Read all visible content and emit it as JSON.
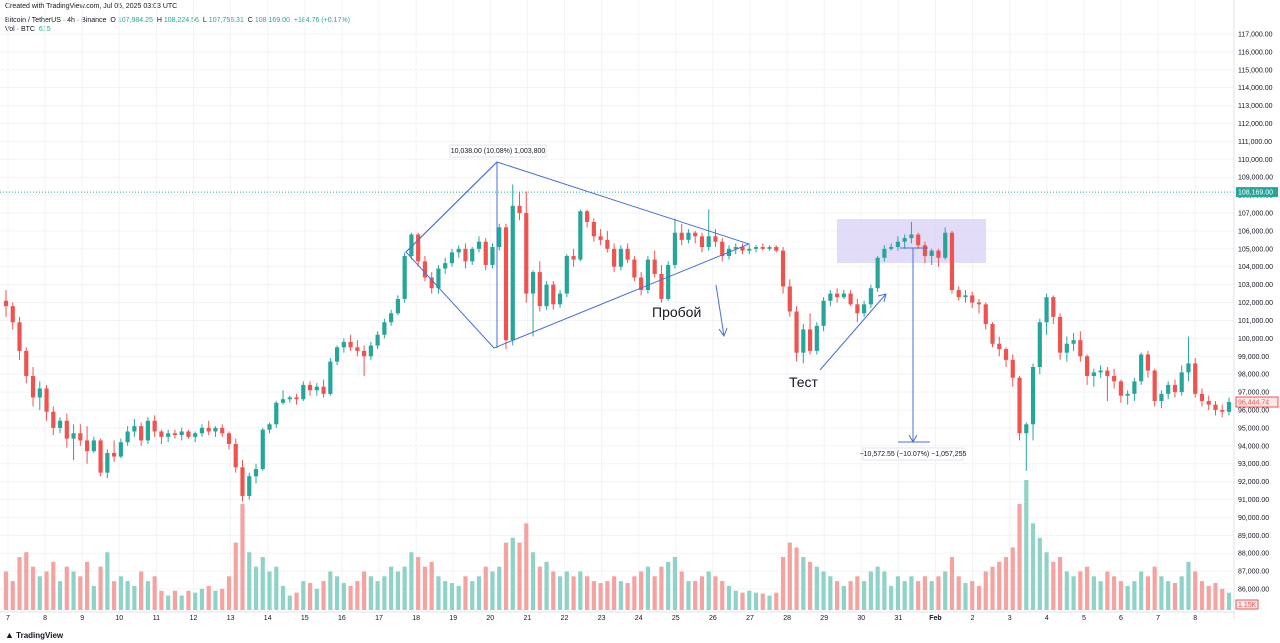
{
  "header": {
    "created": "Created with TradingView.com, Jul 05, 2025 03:03 UTC",
    "symbol": "Bitcoin / TetherUS · 4h · Binance",
    "o_label": "O",
    "o": "107,984.25",
    "h_label": "H",
    "h": "108,224.56",
    "l_label": "L",
    "l": "107,756.31",
    "c_label": "C",
    "c": "108,169.00",
    "change": "+184.76 (+0.17%)",
    "vol_label": "Vol · BTC",
    "vol": "615"
  },
  "brand": "TradingView",
  "colors": {
    "up": "#26a69a",
    "down": "#ef5350",
    "up_vol": "#8fd3c8",
    "down_vol": "#f4a3a1",
    "drawing": "#4a6fd8",
    "zone": "#d9d0f5",
    "price_tag": "#26a69a",
    "last_tag": "#ef5350"
  },
  "chart_data": {
    "type": "candlestick",
    "ylim": [
      85500,
      117500
    ],
    "y_ticks": [
      "117,000.00",
      "116,000.00",
      "115,000.00",
      "114,000.00",
      "113,000.00",
      "112,000.00",
      "111,000.00",
      "110,000.00",
      "109,000.00",
      "108,000.00",
      "107,000.00",
      "106,000.00",
      "105,000.00",
      "104,000.00",
      "103,000.00",
      "102,000.00",
      "101,000.00",
      "100,000.00",
      "99,000.00",
      "98,000.00",
      "97,000.00",
      "96,000.00",
      "95,000.00",
      "94,000.00",
      "93,000.00",
      "92,000.00",
      "91,000.00",
      "90,000.00",
      "89,000.00",
      "88,000.00",
      "87,000.00",
      "86,000.00"
    ],
    "x_ticks": [
      "7",
      "8",
      "9",
      "10",
      "11",
      "12",
      "13",
      "14",
      "15",
      "16",
      "17",
      "18",
      "19",
      "20",
      "21",
      "22",
      "23",
      "24",
      "25",
      "26",
      "27",
      "28",
      "29",
      "30",
      "31",
      "Feb",
      "2",
      "3",
      "4",
      "5",
      "6",
      "7",
      "8"
    ],
    "current_price": "108,169.00",
    "current_price_value": 108169,
    "last_candle_price": "96,444.74",
    "last_candle_value": 96444.74,
    "last_volume": "1.15K",
    "measure_up": "10,038.00 (10.08%) 1,003,800",
    "measure_down": "−10,572.55 (−10.07%) −1,057,255",
    "annotations": [
      "Пробой",
      "Тест"
    ],
    "candles": [
      [
        102100,
        102700,
        101200,
        101800,
        40
      ],
      [
        101800,
        102000,
        100500,
        100900,
        30
      ],
      [
        100900,
        101200,
        98800,
        99300,
        55
      ],
      [
        99300,
        99500,
        97500,
        97900,
        60
      ],
      [
        97900,
        98400,
        96200,
        96700,
        45
      ],
      [
        96700,
        97600,
        96000,
        97200,
        35
      ],
      [
        97200,
        97400,
        95400,
        95900,
        40
      ],
      [
        95900,
        96200,
        94600,
        95000,
        50
      ],
      [
        95000,
        95600,
        94700,
        95400,
        30
      ],
      [
        95400,
        95800,
        93900,
        94400,
        45
      ],
      [
        94400,
        95200,
        93200,
        94700,
        40
      ],
      [
        94700,
        95200,
        94000,
        94300,
        35
      ],
      [
        94300,
        95100,
        93000,
        93700,
        50
      ],
      [
        93700,
        94500,
        93600,
        94300,
        25
      ],
      [
        94300,
        94400,
        92300,
        92500,
        45
      ],
      [
        92500,
        93800,
        92200,
        93600,
        60
      ],
      [
        93600,
        94300,
        93100,
        93400,
        30
      ],
      [
        93400,
        94400,
        93300,
        94200,
        35
      ],
      [
        94200,
        95100,
        94000,
        94800,
        30
      ],
      [
        94800,
        95500,
        94500,
        95100,
        25
      ],
      [
        95100,
        95300,
        94000,
        94300,
        40
      ],
      [
        94300,
        95600,
        94100,
        95400,
        30
      ],
      [
        95400,
        95700,
        94500,
        94800,
        35
      ],
      [
        94800,
        94900,
        94100,
        94500,
        20
      ],
      [
        94500,
        94900,
        94200,
        94700,
        15
      ],
      [
        94700,
        94900,
        94400,
        94600,
        20
      ],
      [
        94600,
        95000,
        94300,
        94800,
        15
      ],
      [
        94800,
        94900,
        94400,
        94500,
        20
      ],
      [
        94500,
        94800,
        94200,
        94700,
        18
      ],
      [
        94700,
        95200,
        94500,
        95000,
        22
      ],
      [
        95000,
        95400,
        94600,
        94800,
        25
      ],
      [
        94800,
        95100,
        94500,
        95000,
        20
      ],
      [
        95000,
        95200,
        94500,
        94700,
        22
      ],
      [
        94700,
        94800,
        93800,
        94100,
        35
      ],
      [
        94100,
        94400,
        92500,
        92800,
        70
      ],
      [
        92800,
        93200,
        90900,
        91200,
        110
      ],
      [
        91200,
        92500,
        91000,
        92300,
        60
      ],
      [
        92300,
        93000,
        91900,
        92700,
        45
      ],
      [
        92700,
        95000,
        92600,
        94900,
        55
      ],
      [
        94900,
        95300,
        94700,
        95200,
        40
      ],
      [
        95200,
        96500,
        95000,
        96400,
        45
      ],
      [
        96400,
        97100,
        96300,
        96600,
        25
      ],
      [
        96600,
        96800,
        96400,
        96700,
        15
      ],
      [
        96700,
        96900,
        96300,
        96600,
        18
      ],
      [
        96600,
        97600,
        96500,
        97400,
        30
      ],
      [
        97400,
        97600,
        96800,
        97100,
        28
      ],
      [
        97100,
        97500,
        96800,
        97300,
        22
      ],
      [
        97300,
        97700,
        96700,
        96900,
        30
      ],
      [
        96900,
        98900,
        96800,
        98700,
        40
      ],
      [
        98700,
        99600,
        98500,
        99500,
        35
      ],
      [
        99500,
        100000,
        99200,
        99800,
        28
      ],
      [
        99800,
        100200,
        99300,
        99500,
        25
      ],
      [
        99500,
        99900,
        99000,
        99300,
        30
      ],
      [
        99300,
        99600,
        97900,
        99000,
        40
      ],
      [
        99000,
        99800,
        98800,
        99600,
        35
      ],
      [
        99600,
        100400,
        99400,
        100200,
        30
      ],
      [
        100200,
        101100,
        100000,
        100900,
        35
      ],
      [
        100900,
        101600,
        100700,
        101400,
        45
      ],
      [
        101400,
        102400,
        101300,
        102200,
        40
      ],
      [
        102200,
        104800,
        102000,
        104600,
        45
      ],
      [
        104600,
        105900,
        104400,
        105800,
        60
      ],
      [
        105800,
        105900,
        104000,
        104300,
        55
      ],
      [
        104300,
        104600,
        103200,
        103400,
        45
      ],
      [
        103400,
        103700,
        102500,
        102800,
        50
      ],
      [
        102800,
        104100,
        102500,
        103900,
        35
      ],
      [
        103900,
        104500,
        103600,
        104200,
        30
      ],
      [
        104200,
        105000,
        104000,
        104800,
        28
      ],
      [
        104800,
        105200,
        104500,
        105000,
        25
      ],
      [
        105000,
        105300,
        103900,
        104300,
        35
      ],
      [
        104300,
        105100,
        104100,
        105000,
        30
      ],
      [
        105000,
        105700,
        104800,
        105400,
        35
      ],
      [
        105400,
        105600,
        103800,
        104100,
        45
      ],
      [
        104100,
        105300,
        103900,
        105100,
        40
      ],
      [
        105100,
        106400,
        104900,
        106200,
        45
      ],
      [
        106200,
        106400,
        99400,
        99900,
        70
      ],
      [
        99900,
        108600,
        99600,
        107400,
        75
      ],
      [
        107400,
        108200,
        106600,
        107000,
        70
      ],
      [
        107000,
        108200,
        102000,
        102500,
        90
      ],
      [
        102500,
        103800,
        100100,
        103700,
        60
      ],
      [
        103700,
        104300,
        101500,
        101800,
        45
      ],
      [
        101800,
        103200,
        101600,
        103000,
        50
      ],
      [
        103000,
        103200,
        101600,
        101900,
        40
      ],
      [
        101900,
        102700,
        101700,
        102500,
        35
      ],
      [
        102500,
        104700,
        102300,
        104600,
        40
      ],
      [
        104600,
        105000,
        104000,
        104400,
        35
      ],
      [
        104400,
        107200,
        104300,
        107100,
        40
      ],
      [
        107100,
        107200,
        106200,
        106500,
        35
      ],
      [
        106500,
        106700,
        105400,
        105700,
        30
      ],
      [
        105700,
        106100,
        105200,
        105500,
        28
      ],
      [
        105500,
        106000,
        104800,
        105000,
        30
      ],
      [
        105000,
        105300,
        103700,
        104000,
        35
      ],
      [
        104000,
        105200,
        103800,
        105000,
        30
      ],
      [
        105000,
        105300,
        104200,
        104400,
        28
      ],
      [
        104400,
        104600,
        103200,
        103400,
        35
      ],
      [
        103400,
        103700,
        102400,
        102700,
        40
      ],
      [
        102700,
        104600,
        102500,
        104400,
        45
      ],
      [
        104400,
        104900,
        103400,
        103600,
        35
      ],
      [
        103600,
        104100,
        102000,
        102200,
        45
      ],
      [
        102200,
        104300,
        102100,
        104100,
        50
      ],
      [
        104100,
        106700,
        103900,
        105900,
        55
      ],
      [
        105900,
        106400,
        105200,
        105500,
        40
      ],
      [
        105500,
        106100,
        105300,
        105900,
        30
      ],
      [
        105900,
        106000,
        105300,
        105700,
        30
      ],
      [
        105700,
        105900,
        104800,
        105100,
        35
      ],
      [
        105100,
        107200,
        104900,
        105700,
        40
      ],
      [
        105700,
        106100,
        105100,
        105400,
        35
      ],
      [
        105400,
        105600,
        104300,
        104600,
        30
      ],
      [
        104600,
        105200,
        104400,
        105000,
        25
      ],
      [
        105000,
        105300,
        104700,
        105100,
        20
      ],
      [
        105100,
        105300,
        104700,
        104900,
        18
      ],
      [
        104900,
        105200,
        104700,
        105000,
        20
      ],
      [
        105000,
        105200,
        104800,
        105100,
        18
      ],
      [
        105100,
        105300,
        104900,
        105000,
        17
      ],
      [
        105000,
        105200,
        104900,
        105100,
        15
      ],
      [
        105100,
        105200,
        104800,
        104900,
        18
      ],
      [
        104900,
        105100,
        102500,
        102900,
        55
      ],
      [
        102900,
        103300,
        101200,
        101500,
        70
      ],
      [
        101500,
        101800,
        98700,
        99200,
        65
      ],
      [
        99200,
        100800,
        98600,
        100500,
        55
      ],
      [
        100500,
        101400,
        99100,
        99300,
        50
      ],
      [
        99300,
        100900,
        99100,
        100700,
        45
      ],
      [
        100700,
        102300,
        100400,
        102100,
        40
      ],
      [
        102100,
        102700,
        101800,
        102500,
        35
      ],
      [
        102500,
        102800,
        102000,
        102300,
        30
      ],
      [
        102300,
        102700,
        102200,
        102500,
        25
      ],
      [
        102500,
        102700,
        101800,
        101900,
        30
      ],
      [
        101900,
        102200,
        100900,
        101400,
        35
      ],
      [
        101400,
        102100,
        101200,
        101900,
        30
      ],
      [
        101900,
        103000,
        101700,
        102800,
        40
      ],
      [
        102800,
        104600,
        102600,
        104500,
        45
      ],
      [
        104500,
        105200,
        104300,
        105000,
        40
      ],
      [
        105000,
        105300,
        104900,
        105100,
        25
      ],
      [
        105100,
        105700,
        104900,
        105400,
        35
      ],
      [
        105400,
        105800,
        105000,
        105600,
        30
      ],
      [
        105600,
        106500,
        105300,
        105800,
        35
      ],
      [
        105800,
        105900,
        105000,
        105200,
        30
      ],
      [
        105200,
        105400,
        104200,
        104600,
        35
      ],
      [
        104600,
        105000,
        104100,
        104900,
        30
      ],
      [
        104900,
        105000,
        104000,
        104500,
        35
      ],
      [
        104500,
        106200,
        104400,
        105900,
        40
      ],
      [
        105900,
        106000,
        102500,
        102700,
        55
      ],
      [
        102700,
        102900,
        102100,
        102300,
        35
      ],
      [
        102300,
        102700,
        102000,
        102400,
        28
      ],
      [
        102400,
        102600,
        101700,
        102000,
        30
      ],
      [
        102000,
        102200,
        101400,
        101900,
        25
      ],
      [
        101900,
        102000,
        100500,
        100800,
        40
      ],
      [
        100800,
        100900,
        99500,
        99700,
        45
      ],
      [
        99700,
        100100,
        99000,
        99400,
        50
      ],
      [
        99400,
        99500,
        98400,
        98800,
        55
      ],
      [
        98800,
        99100,
        97300,
        97800,
        65
      ],
      [
        97800,
        97900,
        94300,
        94700,
        110
      ],
      [
        94700,
        95300,
        92600,
        95200,
        135
      ],
      [
        95200,
        98600,
        94300,
        98400,
        90
      ],
      [
        98400,
        101100,
        98000,
        100900,
        75
      ],
      [
        100900,
        102500,
        100200,
        102300,
        60
      ],
      [
        102300,
        102400,
        100800,
        101200,
        50
      ],
      [
        101200,
        101400,
        98800,
        99200,
        55
      ],
      [
        99200,
        100100,
        98700,
        99700,
        40
      ],
      [
        99700,
        100300,
        99300,
        99900,
        35
      ],
      [
        99900,
        100400,
        98700,
        99000,
        40
      ],
      [
        99000,
        99100,
        97400,
        97900,
        45
      ],
      [
        97900,
        98300,
        97300,
        98100,
        35
      ],
      [
        98100,
        98500,
        97800,
        98200,
        30
      ],
      [
        98200,
        98400,
        96500,
        97900,
        40
      ],
      [
        97900,
        98300,
        97200,
        97600,
        35
      ],
      [
        97600,
        97700,
        96400,
        96800,
        30
      ],
      [
        96800,
        97100,
        96300,
        96900,
        25
      ],
      [
        96900,
        97800,
        96500,
        97600,
        30
      ],
      [
        97600,
        99200,
        97400,
        99100,
        40
      ],
      [
        99100,
        99300,
        97800,
        98200,
        35
      ],
      [
        98200,
        98300,
        96200,
        96500,
        45
      ],
      [
        96500,
        97100,
        96100,
        96900,
        35
      ],
      [
        96900,
        97600,
        96600,
        97400,
        30
      ],
      [
        97400,
        97700,
        96700,
        97000,
        28
      ],
      [
        97000,
        98500,
        96800,
        98100,
        35
      ],
      [
        98100,
        100100,
        97600,
        98600,
        50
      ],
      [
        98600,
        98900,
        96700,
        96900,
        40
      ],
      [
        96900,
        97200,
        96200,
        96500,
        30
      ],
      [
        96500,
        96800,
        96000,
        96300,
        25
      ],
      [
        96300,
        96500,
        95700,
        96000,
        28
      ],
      [
        96000,
        96300,
        95600,
        95900,
        22
      ],
      [
        95900,
        96700,
        95700,
        96444.74,
        18
      ]
    ]
  }
}
